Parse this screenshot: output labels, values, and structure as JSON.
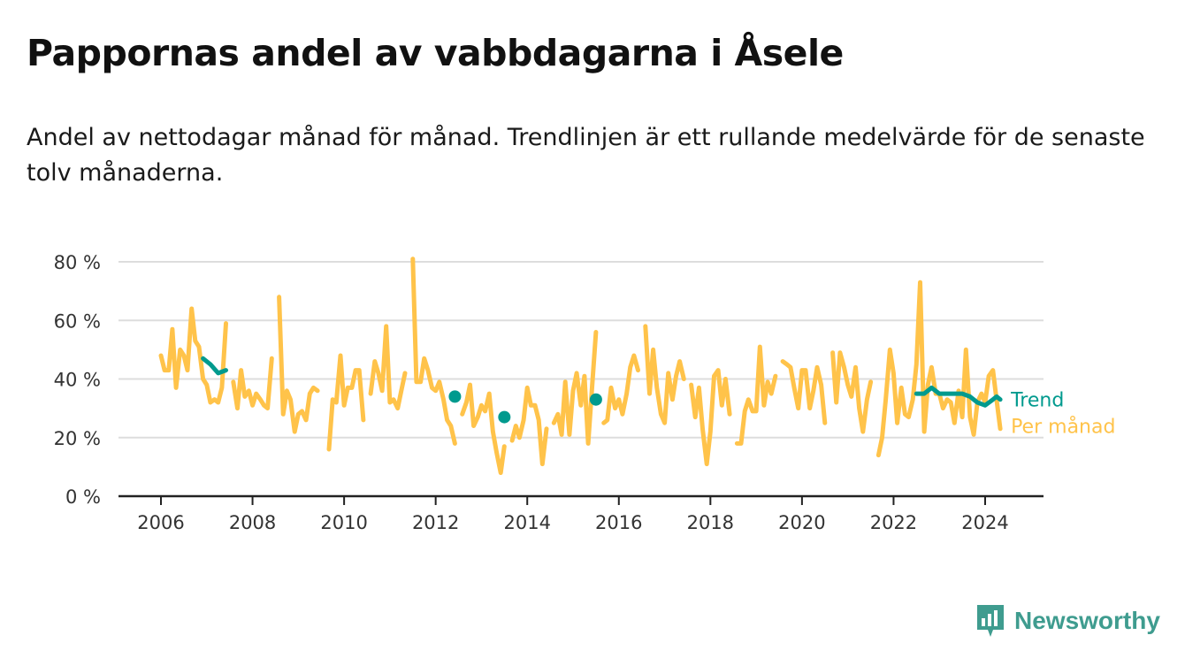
{
  "title": "Pappornas andel av vabbdagarna i Åsele",
  "subtitle": "Andel av nettodagar månad för månad. Trendlinjen är ett rullande medelvärde för de senaste tolv månaderna.",
  "brand": "Newsworthy",
  "colors": {
    "monthly": "#ffc34a",
    "trend": "#009a8e",
    "grid": "#dddddd",
    "axis": "#222222"
  },
  "chart_data": {
    "type": "line",
    "title": "Pappornas andel av vabbdagarna i Åsele",
    "ylim": [
      0,
      80
    ],
    "yticks": [
      0,
      20,
      40,
      60,
      80
    ],
    "ytick_labels": [
      "0 %",
      "20 %",
      "40 %",
      "60 %",
      "80 %"
    ],
    "xlim": [
      2005.75,
      2025.25
    ],
    "xticks": [
      2006,
      2008,
      2010,
      2012,
      2014,
      2016,
      2018,
      2020,
      2022,
      2024
    ],
    "xtick_labels": [
      "2006",
      "2008",
      "2010",
      "2012",
      "2014",
      "2016",
      "2018",
      "2020",
      "2022",
      "2024"
    ],
    "grid": true,
    "series": [
      {
        "name": "Per månad",
        "segments": [
          [
            [
              2006.0,
              48
            ],
            [
              2006.08,
              43
            ],
            [
              2006.17,
              43
            ],
            [
              2006.25,
              57
            ],
            [
              2006.33,
              37
            ],
            [
              2006.42,
              50
            ],
            [
              2006.5,
              48
            ],
            [
              2006.58,
              43
            ],
            [
              2006.67,
              64
            ],
            [
              2006.75,
              53
            ],
            [
              2006.83,
              51
            ],
            [
              2006.92,
              40
            ],
            [
              2007.0,
              38
            ],
            [
              2007.08,
              32
            ],
            [
              2007.17,
              33
            ],
            [
              2007.25,
              32
            ],
            [
              2007.33,
              37
            ],
            [
              2007.42,
              59
            ]
          ],
          [
            [
              2007.58,
              39
            ],
            [
              2007.67,
              30
            ],
            [
              2007.75,
              43
            ],
            [
              2007.83,
              34
            ],
            [
              2007.92,
              36
            ],
            [
              2008.0,
              31
            ],
            [
              2008.08,
              35
            ],
            [
              2008.17,
              33
            ],
            [
              2008.25,
              31
            ],
            [
              2008.33,
              30
            ],
            [
              2008.42,
              47
            ]
          ],
          [
            [
              2008.58,
              68
            ],
            [
              2008.67,
              28
            ],
            [
              2008.75,
              36
            ],
            [
              2008.83,
              33
            ],
            [
              2008.92,
              22
            ],
            [
              2009.0,
              28
            ],
            [
              2009.08,
              29
            ],
            [
              2009.17,
              26
            ],
            [
              2009.25,
              35
            ],
            [
              2009.33,
              37
            ],
            [
              2009.42,
              36
            ]
          ],
          [
            [
              2009.67,
              16
            ],
            [
              2009.75,
              33
            ],
            [
              2009.83,
              32
            ],
            [
              2009.92,
              48
            ],
            [
              2010.0,
              31
            ],
            [
              2010.08,
              37
            ],
            [
              2010.17,
              37
            ],
            [
              2010.25,
              43
            ],
            [
              2010.33,
              43
            ],
            [
              2010.42,
              26
            ]
          ],
          [
            [
              2010.58,
              35
            ],
            [
              2010.67,
              46
            ],
            [
              2010.75,
              42
            ],
            [
              2010.83,
              36
            ],
            [
              2010.92,
              58
            ],
            [
              2011.0,
              32
            ],
            [
              2011.08,
              33
            ],
            [
              2011.17,
              30
            ],
            [
              2011.25,
              36
            ],
            [
              2011.33,
              42
            ]
          ],
          [
            [
              2011.5,
              81
            ],
            [
              2011.58,
              39
            ],
            [
              2011.67,
              39
            ],
            [
              2011.75,
              47
            ],
            [
              2011.83,
              43
            ],
            [
              2011.92,
              37
            ],
            [
              2012.0,
              36
            ],
            [
              2012.08,
              39
            ],
            [
              2012.17,
              33
            ],
            [
              2012.25,
              26
            ],
            [
              2012.33,
              24
            ],
            [
              2012.42,
              18
            ]
          ],
          [
            [
              2012.58,
              28
            ],
            [
              2012.67,
              32
            ],
            [
              2012.75,
              38
            ],
            [
              2012.83,
              24
            ],
            [
              2012.92,
              27
            ],
            [
              2013.0,
              31
            ],
            [
              2013.08,
              29
            ],
            [
              2013.17,
              35
            ],
            [
              2013.25,
              22
            ],
            [
              2013.33,
              15
            ],
            [
              2013.42,
              8
            ],
            [
              2013.5,
              17
            ]
          ],
          [
            [
              2013.67,
              19
            ],
            [
              2013.75,
              24
            ],
            [
              2013.83,
              20
            ],
            [
              2013.92,
              26
            ],
            [
              2014.0,
              37
            ],
            [
              2014.08,
              31
            ],
            [
              2014.17,
              31
            ],
            [
              2014.25,
              26
            ],
            [
              2014.33,
              11
            ],
            [
              2014.42,
              23
            ]
          ],
          [
            [
              2014.58,
              25
            ],
            [
              2014.67,
              28
            ],
            [
              2014.75,
              21
            ],
            [
              2014.83,
              39
            ],
            [
              2014.92,
              21
            ],
            [
              2015.0,
              36
            ],
            [
              2015.08,
              42
            ],
            [
              2015.17,
              31
            ],
            [
              2015.25,
              41
            ],
            [
              2015.33,
              18
            ],
            [
              2015.42,
              38
            ],
            [
              2015.5,
              56
            ]
          ],
          [
            [
              2015.67,
              25
            ],
            [
              2015.75,
              26
            ],
            [
              2015.83,
              37
            ],
            [
              2015.92,
              30
            ],
            [
              2016.0,
              33
            ],
            [
              2016.08,
              28
            ],
            [
              2016.17,
              35
            ],
            [
              2016.25,
              44
            ],
            [
              2016.33,
              48
            ],
            [
              2016.42,
              43
            ]
          ],
          [
            [
              2016.58,
              58
            ],
            [
              2016.67,
              35
            ],
            [
              2016.75,
              50
            ],
            [
              2016.83,
              37
            ],
            [
              2016.92,
              28
            ],
            [
              2017.0,
              25
            ],
            [
              2017.08,
              42
            ],
            [
              2017.17,
              33
            ],
            [
              2017.25,
              41
            ],
            [
              2017.33,
              46
            ],
            [
              2017.42,
              40
            ]
          ],
          [
            [
              2017.58,
              38
            ],
            [
              2017.67,
              27
            ],
            [
              2017.75,
              37
            ],
            [
              2017.83,
              23
            ],
            [
              2017.92,
              11
            ],
            [
              2018.0,
              22
            ],
            [
              2018.08,
              41
            ],
            [
              2018.17,
              43
            ],
            [
              2018.25,
              31
            ],
            [
              2018.33,
              40
            ],
            [
              2018.42,
              28
            ]
          ],
          [
            [
              2018.58,
              18
            ],
            [
              2018.67,
              18
            ],
            [
              2018.75,
              29
            ],
            [
              2018.83,
              33
            ],
            [
              2018.92,
              29
            ],
            [
              2019.0,
              29
            ],
            [
              2019.08,
              51
            ],
            [
              2019.17,
              31
            ],
            [
              2019.25,
              39
            ],
            [
              2019.33,
              35
            ],
            [
              2019.42,
              41
            ]
          ],
          [
            [
              2019.58,
              46
            ],
            [
              2019.67,
              45
            ],
            [
              2019.75,
              44
            ],
            [
              2019.83,
              37
            ],
            [
              2019.92,
              30
            ],
            [
              2020.0,
              43
            ],
            [
              2020.08,
              43
            ],
            [
              2020.17,
              30
            ],
            [
              2020.25,
              36
            ],
            [
              2020.33,
              44
            ],
            [
              2020.42,
              38
            ],
            [
              2020.5,
              25
            ]
          ],
          [
            [
              2020.67,
              49
            ],
            [
              2020.75,
              32
            ],
            [
              2020.83,
              49
            ],
            [
              2020.92,
              44
            ],
            [
              2021.0,
              38
            ],
            [
              2021.08,
              34
            ],
            [
              2021.17,
              44
            ],
            [
              2021.25,
              30
            ],
            [
              2021.33,
              22
            ],
            [
              2021.42,
              33
            ],
            [
              2021.5,
              39
            ]
          ],
          [
            [
              2021.67,
              14
            ],
            [
              2021.75,
              20
            ],
            [
              2021.83,
              33
            ],
            [
              2021.92,
              50
            ],
            [
              2022.0,
              42
            ],
            [
              2022.08,
              25
            ],
            [
              2022.17,
              37
            ],
            [
              2022.25,
              28
            ],
            [
              2022.33,
              27
            ],
            [
              2022.42,
              33
            ],
            [
              2022.5,
              45
            ],
            [
              2022.58,
              73
            ],
            [
              2022.67,
              22
            ],
            [
              2022.75,
              38
            ],
            [
              2022.83,
              44
            ],
            [
              2022.92,
              35
            ],
            [
              2023.0,
              35
            ],
            [
              2023.08,
              30
            ],
            [
              2023.17,
              33
            ],
            [
              2023.25,
              32
            ],
            [
              2023.33,
              25
            ],
            [
              2023.42,
              36
            ],
            [
              2023.5,
              27
            ],
            [
              2023.58,
              50
            ],
            [
              2023.67,
              27
            ],
            [
              2023.75,
              21
            ],
            [
              2023.83,
              32
            ],
            [
              2023.92,
              35
            ],
            [
              2024.0,
              32
            ],
            [
              2024.08,
              41
            ],
            [
              2024.17,
              43
            ],
            [
              2024.25,
              33
            ],
            [
              2024.33,
              23
            ]
          ]
        ]
      },
      {
        "name": "Trend",
        "segments": [
          [
            [
              2006.92,
              47
            ],
            [
              2007.08,
              45
            ],
            [
              2007.25,
              42
            ],
            [
              2007.42,
              43
            ]
          ],
          [
            [
              2012.42,
              34
            ]
          ],
          [
            [
              2013.5,
              27
            ]
          ],
          [
            [
              2015.5,
              33
            ]
          ],
          [
            [
              2022.5,
              35
            ],
            [
              2022.67,
              35
            ],
            [
              2022.83,
              37
            ],
            [
              2023.0,
              35
            ],
            [
              2023.17,
              35
            ],
            [
              2023.33,
              35
            ],
            [
              2023.5,
              35
            ],
            [
              2023.67,
              34
            ],
            [
              2023.83,
              32
            ],
            [
              2024.0,
              31
            ],
            [
              2024.17,
              33
            ],
            [
              2024.25,
              34
            ],
            [
              2024.33,
              33
            ]
          ]
        ]
      }
    ]
  }
}
